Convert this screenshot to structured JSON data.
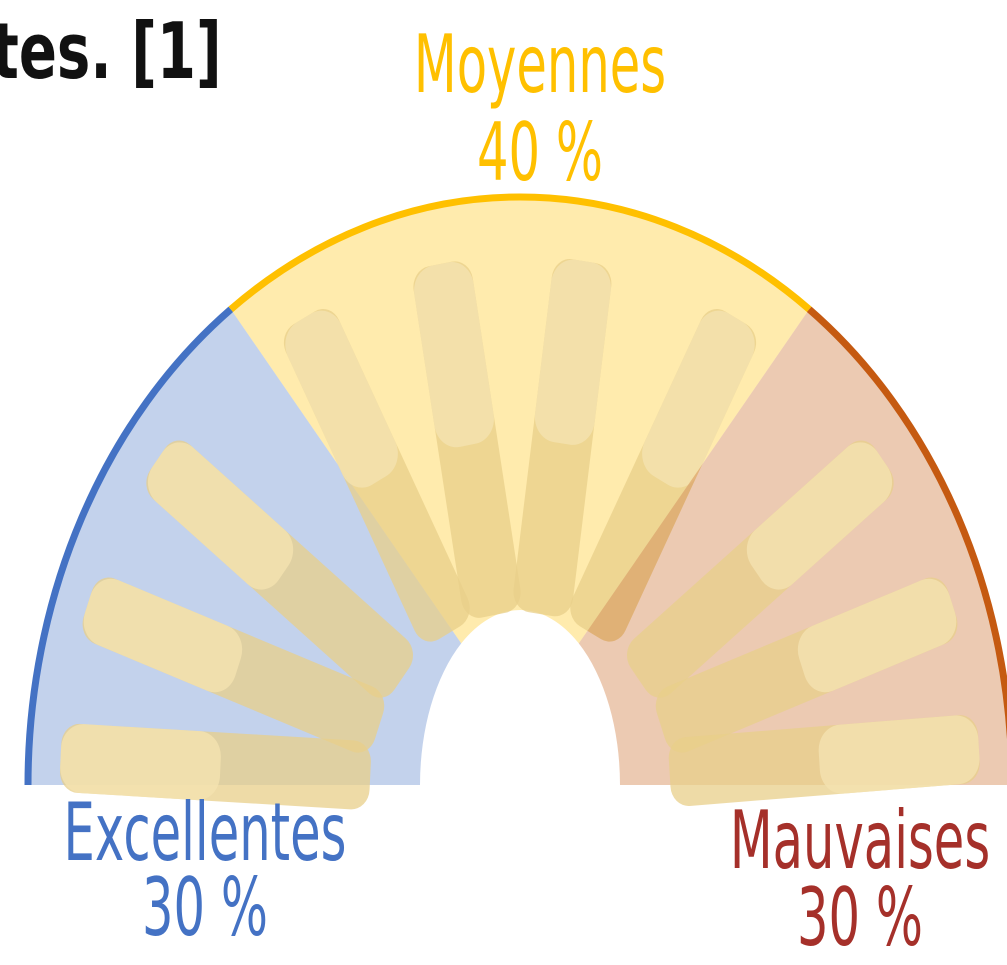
{
  "chart_data": {
    "type": "pie",
    "title": "tes. [1]",
    "categories": [
      "Excellentes",
      "Moyennes",
      "Mauvaises"
    ],
    "values": [
      30,
      40,
      30
    ],
    "value_labels": [
      "30 %",
      "40 %",
      "30 %"
    ],
    "colors": [
      "#4472c4",
      "#ffc000",
      "#c55a11"
    ],
    "label_colors": [
      "#4472c4",
      "#ffc000",
      "#a5302a"
    ]
  }
}
